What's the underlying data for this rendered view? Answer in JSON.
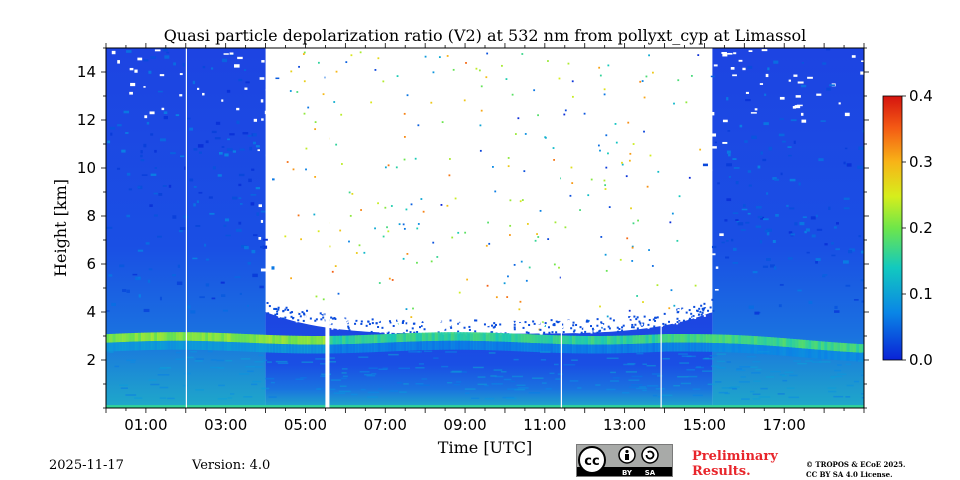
{
  "chart_data": {
    "type": "heatmap",
    "title": "Quasi particle depolarization ratio (V2) at 532 nm from pollyxt_cyp at Limassol",
    "xlabel": "Time [UTC]",
    "ylabel": "Height [km]",
    "xlim": [
      0,
      19
    ],
    "ylim": [
      0,
      15
    ],
    "x_ticks": [
      "01:00",
      "03:00",
      "05:00",
      "07:00",
      "09:00",
      "11:00",
      "13:00",
      "15:00",
      "17:00"
    ],
    "x_tick_values": [
      1,
      3,
      5,
      7,
      9,
      11,
      13,
      15,
      17
    ],
    "y_tick_values": [
      2,
      4,
      6,
      8,
      10,
      12,
      14
    ],
    "y_tick_labels": [
      "2",
      "4",
      "6",
      "8",
      "10",
      "12",
      "14"
    ],
    "colorbar": {
      "range": [
        0.0,
        0.4
      ],
      "tick_values": [
        0.0,
        0.1,
        0.2,
        0.3,
        0.4
      ],
      "tick_labels": [
        "0.0",
        "0.1",
        "0.2",
        "0.3",
        "0.4"
      ],
      "colormap": "jet"
    },
    "layers": [
      {
        "name": "aerosol layer",
        "height_km": 2.9,
        "depol": 0.2
      },
      {
        "name": "upper-sky noise",
        "height_range_km": [
          4,
          15
        ],
        "depol": 0.02
      }
    ],
    "missing_data_time_hours": [
      2.0,
      5.5,
      11.4,
      13.9
    ],
    "daylight_gap_time_hours": [
      4.0,
      15.2
    ]
  },
  "footer": {
    "date": "2025-11-17",
    "version": "Version: 4.0",
    "preliminary_line1": "Preliminary",
    "preliminary_line2": "Results.",
    "copyright_line1": "© TROPOS & ECoE 2025.",
    "copyright_line2": "CC BY SA 4.0 License.",
    "license_badge": {
      "cc": "cc",
      "by": "BY",
      "sa": "SA"
    }
  },
  "colors": {
    "low": "#1a3fe8",
    "mid": "#17d3ac",
    "layer": "#9bf03a",
    "high": "#e21a1a"
  }
}
